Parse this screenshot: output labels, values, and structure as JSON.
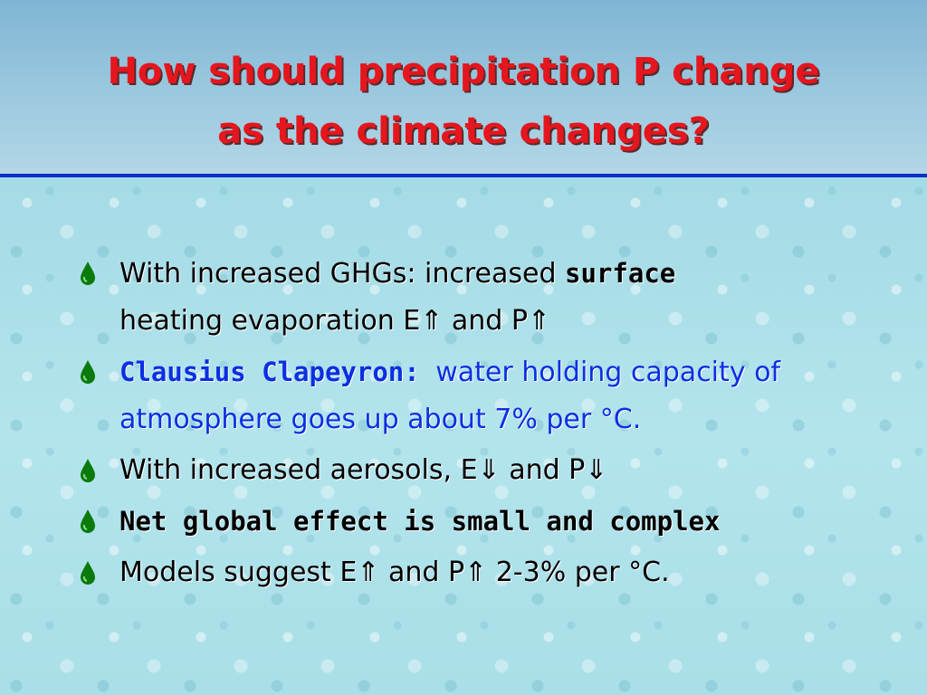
{
  "title": {
    "line1": "How should precipitation P change",
    "line2": "as the climate changes?"
  },
  "bullets": [
    {
      "part1": "With increased GHGs: increased ",
      "part2": "surface",
      "part3": "heating  evaporation E⇑ and P⇑"
    },
    {
      "part1": "Clausius Clapeyron: ",
      "part2": "water holding capacity of atmosphere goes up about 7% per °C."
    },
    {
      "text": "With increased aerosols, E⇓ and P⇓"
    },
    {
      "text": "Net global effect is small and complex"
    },
    {
      "text": "Models suggest E⇑ and P⇑  2-3% per °C."
    }
  ],
  "colors": {
    "title": "#e5161e",
    "accent_blue": "#0c2fe0",
    "bullet_icon": "#0a7a0a"
  },
  "icons": {
    "bullet": "green-droplet-icon"
  }
}
